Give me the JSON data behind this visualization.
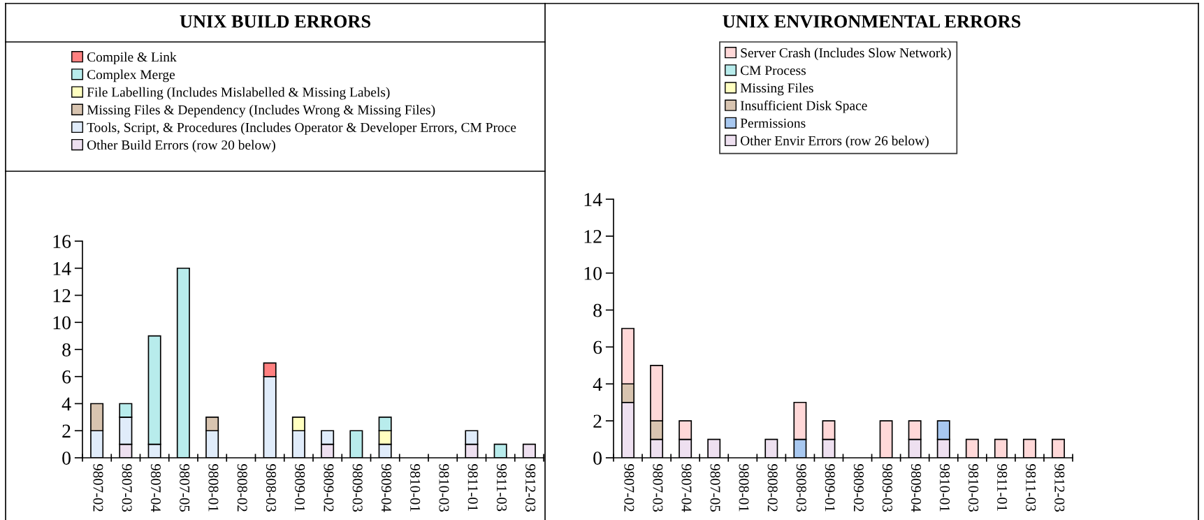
{
  "chart_data": [
    {
      "type": "bar",
      "title": "UNIX BUILD ERRORS",
      "stacked": true,
      "legend": "top",
      "grid": false,
      "categories": [
        "9807-02",
        "9807-03",
        "9807-04",
        "9807-05",
        "9808-01",
        "9808-02",
        "9808-03",
        "9809-01",
        "9809-02",
        "9809-03",
        "9809-04",
        "9810-01",
        "9810-03",
        "9811-01",
        "9811-03",
        "9812-03"
      ],
      "ylim": [
        0,
        16
      ],
      "yticks": [
        0,
        2,
        4,
        6,
        8,
        10,
        12,
        14,
        16
      ],
      "series": [
        {
          "name": "Other Build Errors (row 20 below)",
          "color": "#eee0f0",
          "values": [
            0,
            1,
            0,
            0,
            0,
            0,
            0,
            0,
            1,
            0,
            0,
            0,
            0,
            1,
            0,
            1
          ]
        },
        {
          "name": "Tools, Script, & Procedures (Includes Operator & Developer Errors, CM Proce",
          "color": "#e0ecfa",
          "values": [
            2,
            2,
            1,
            0,
            2,
            0,
            6,
            2,
            1,
            0,
            1,
            0,
            0,
            1,
            0,
            0
          ]
        },
        {
          "name": "Missing Files & Dependency (Includes Wrong & Missing Files)",
          "color": "#d8c4b0",
          "values": [
            2,
            0,
            0,
            0,
            1,
            0,
            0,
            0,
            0,
            0,
            0,
            0,
            0,
            0,
            0,
            0
          ]
        },
        {
          "name": "File Labelling (Includes Mislabelled & Missing Labels)",
          "color": "#ffffc0",
          "values": [
            0,
            0,
            0,
            0,
            0,
            0,
            0,
            1,
            0,
            0,
            1,
            0,
            0,
            0,
            0,
            0
          ]
        },
        {
          "name": "Complex Merge",
          "color": "#b8ecec",
          "values": [
            0,
            1,
            8,
            14,
            0,
            0,
            0,
            0,
            0,
            2,
            1,
            0,
            0,
            0,
            1,
            0
          ]
        },
        {
          "name": "Compile & Link",
          "color": "#ff8080",
          "values": [
            0,
            0,
            0,
            0,
            0,
            0,
            1,
            0,
            0,
            0,
            0,
            0,
            0,
            0,
            0,
            0
          ]
        }
      ]
    },
    {
      "type": "bar",
      "title": "UNIX ENVIRONMENTAL ERRORS",
      "stacked": true,
      "legend": "top",
      "grid": false,
      "categories": [
        "9807-02",
        "9807-03",
        "9807-04",
        "9807-05",
        "9808-01",
        "9808-02",
        "9808-03",
        "9809-01",
        "9809-02",
        "9809-03",
        "9809-04",
        "9810-01",
        "9810-03",
        "9811-01",
        "9811-03",
        "9812-03"
      ],
      "ylim": [
        0,
        14
      ],
      "yticks": [
        0,
        2,
        4,
        6,
        8,
        10,
        12,
        14
      ],
      "series": [
        {
          "name": "Other Envir Errors (row 26 below)",
          "color": "#eee0f0",
          "values": [
            3,
            1,
            1,
            1,
            0,
            1,
            0,
            1,
            0,
            0,
            1,
            1,
            0,
            0,
            0,
            0
          ]
        },
        {
          "name": "Permissions",
          "color": "#a8c8f0",
          "values": [
            0,
            0,
            0,
            0,
            0,
            0,
            1,
            0,
            0,
            0,
            0,
            1,
            0,
            0,
            0,
            0
          ]
        },
        {
          "name": "Insufficient Disk Space",
          "color": "#d8c4b0",
          "values": [
            1,
            1,
            0,
            0,
            0,
            0,
            0,
            0,
            0,
            0,
            0,
            0,
            0,
            0,
            0,
            0
          ]
        },
        {
          "name": "Missing Files",
          "color": "#ffffc0",
          "values": [
            0,
            0,
            0,
            0,
            0,
            0,
            0,
            0,
            0,
            0,
            0,
            0,
            0,
            0,
            0,
            0
          ]
        },
        {
          "name": "CM Process",
          "color": "#b8ecec",
          "values": [
            0,
            0,
            0,
            0,
            0,
            0,
            0,
            0,
            0,
            0,
            0,
            0,
            0,
            0,
            0,
            0
          ]
        },
        {
          "name": "Server Crash (Includes Slow Network)",
          "color": "#ffd8d8",
          "values": [
            3,
            3,
            1,
            0,
            0,
            0,
            2,
            1,
            0,
            2,
            1,
            0,
            1,
            1,
            1,
            1
          ]
        }
      ]
    }
  ]
}
